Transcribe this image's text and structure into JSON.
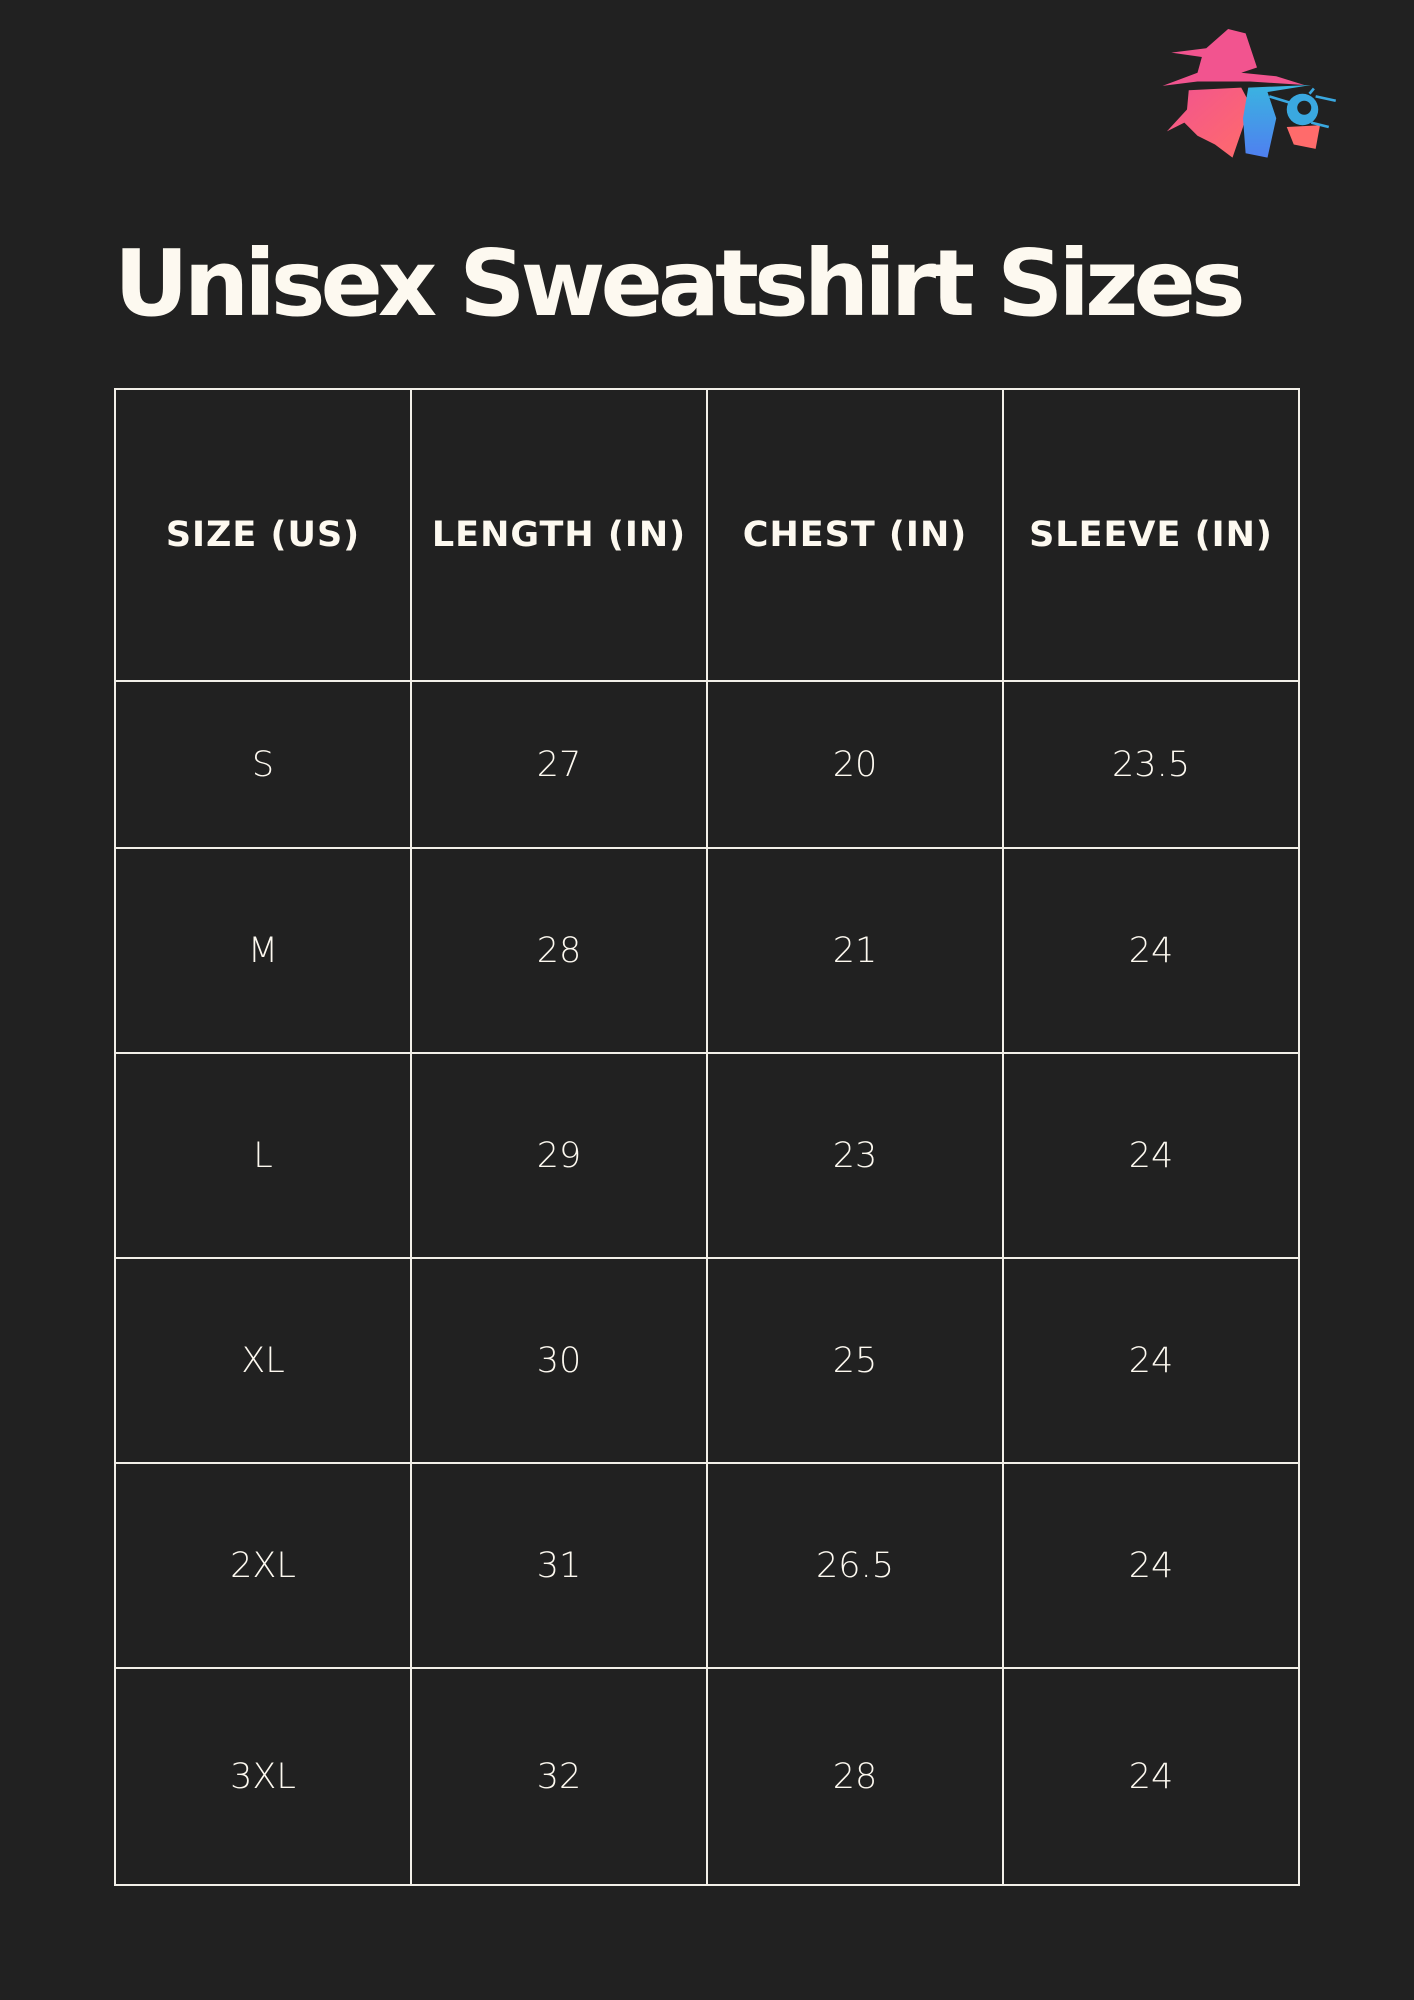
{
  "title": "Unisex Sweatshirt Sizes",
  "logo": {
    "icon": "wizard-logo",
    "colors": [
      "#f2548f",
      "#ff6b6b",
      "#3aa8e0",
      "#4f7ff0"
    ]
  },
  "table": {
    "headers": [
      "SIZE (US)",
      "LENGTH (IN)",
      "CHEST (IN)",
      "SLEEVE (IN)"
    ],
    "rows": [
      [
        "S",
        "27",
        "20",
        "23.5"
      ],
      [
        "M",
        "28",
        "21",
        "24"
      ],
      [
        "L",
        "29",
        "23",
        "24"
      ],
      [
        "XL",
        "30",
        "25",
        "24"
      ],
      [
        "2XL",
        "31",
        "26.5",
        "24"
      ],
      [
        "3XL",
        "32",
        "28",
        "24"
      ]
    ]
  }
}
